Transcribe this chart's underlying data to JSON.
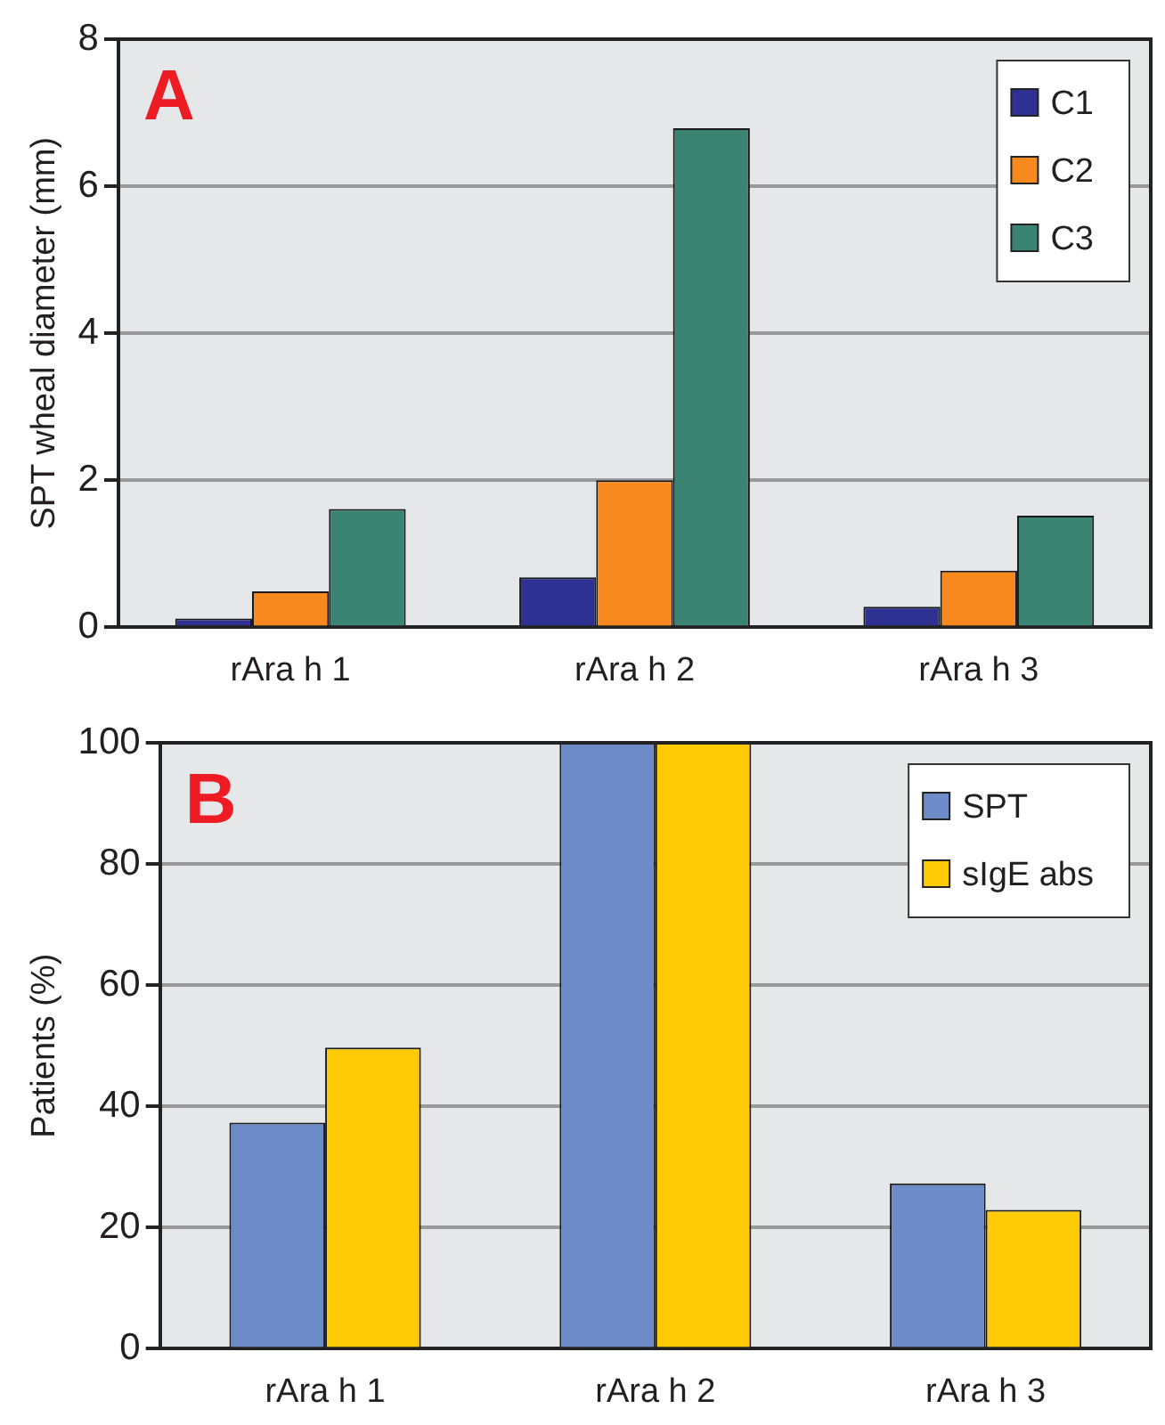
{
  "chart_data": [
    {
      "type": "bar",
      "title": "A",
      "ylabel": "SPT wheal diameter (mm)",
      "categories": [
        "rAra h 1",
        "rAra h 2",
        "rAra h 3"
      ],
      "series": [
        {
          "name": "C1",
          "color": "#2e3192",
          "values": [
            0.12,
            0.68,
            0.28
          ]
        },
        {
          "name": "C2",
          "color": "#f7891f",
          "values": [
            0.49,
            2.0,
            0.77
          ]
        },
        {
          "name": "C3",
          "color": "#3b8372",
          "values": [
            1.61,
            6.79,
            1.52
          ]
        }
      ],
      "ylim": [
        0,
        8
      ],
      "yticks": [
        0,
        2,
        4,
        6,
        8
      ],
      "grid": "y",
      "legend": "top right"
    },
    {
      "type": "bar",
      "title": "B",
      "ylabel": "Patients (%)",
      "categories": [
        "rAra h 1",
        "rAra h 2",
        "rAra h 3"
      ],
      "series": [
        {
          "name": "SPT",
          "color": "#6d8bc7",
          "values": [
            37.3,
            100,
            27.3
          ]
        },
        {
          "name": "sIgE abs",
          "color": "#fecb06",
          "values": [
            49.7,
            100,
            22.9
          ]
        }
      ],
      "ylim": [
        0,
        100
      ],
      "yticks": [
        0,
        20,
        40,
        60,
        80,
        100
      ],
      "grid": "y",
      "legend": "top right"
    }
  ]
}
